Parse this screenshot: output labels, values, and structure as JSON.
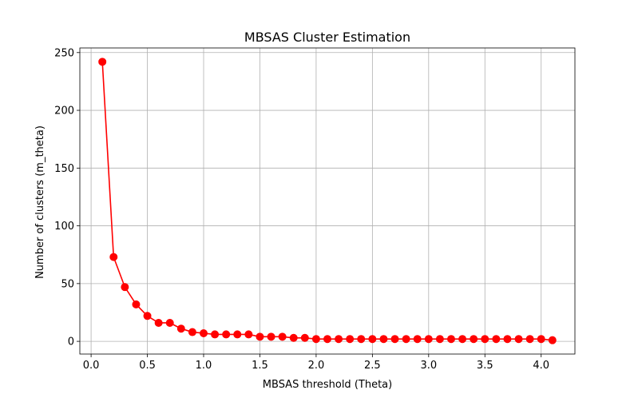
{
  "chart_data": {
    "type": "line",
    "title": "MBSAS Cluster Estimation",
    "xlabel": "MBSAS threshold (Theta)",
    "ylabel": "Number of clusters (m_theta)",
    "xlim": [
      -0.1,
      4.3
    ],
    "ylim": [
      -11,
      254
    ],
    "xticks": [
      0.0,
      0.5,
      1.0,
      1.5,
      2.0,
      2.5,
      3.0,
      3.5,
      4.0
    ],
    "xtick_labels": [
      "0.0",
      "0.5",
      "1.0",
      "1.5",
      "2.0",
      "2.5",
      "3.0",
      "3.5",
      "4.0"
    ],
    "yticks": [
      0,
      50,
      100,
      150,
      200,
      250
    ],
    "ytick_labels": [
      "0",
      "50",
      "100",
      "150",
      "200",
      "250"
    ],
    "grid": true,
    "series": [
      {
        "color": "#ff0000",
        "marker": "circle",
        "x": [
          0.1,
          0.2,
          0.3,
          0.4,
          0.5,
          0.6,
          0.7,
          0.8,
          0.9,
          1.0,
          1.1,
          1.2,
          1.3,
          1.4,
          1.5,
          1.6,
          1.7,
          1.8,
          1.9,
          2.0,
          2.1,
          2.2,
          2.3,
          2.4,
          2.5,
          2.6,
          2.7,
          2.8,
          2.9,
          3.0,
          3.1,
          3.2,
          3.3,
          3.4,
          3.5,
          3.6,
          3.7,
          3.8,
          3.9,
          4.0,
          4.1
        ],
        "y": [
          242,
          73,
          47,
          32,
          22,
          16,
          16,
          11,
          8,
          7,
          6,
          6,
          6,
          6,
          4,
          4,
          4,
          3,
          3,
          2,
          2,
          2,
          2,
          2,
          2,
          2,
          2,
          2,
          2,
          2,
          2,
          2,
          2,
          2,
          2,
          2,
          2,
          2,
          2,
          2,
          1
        ]
      }
    ]
  }
}
